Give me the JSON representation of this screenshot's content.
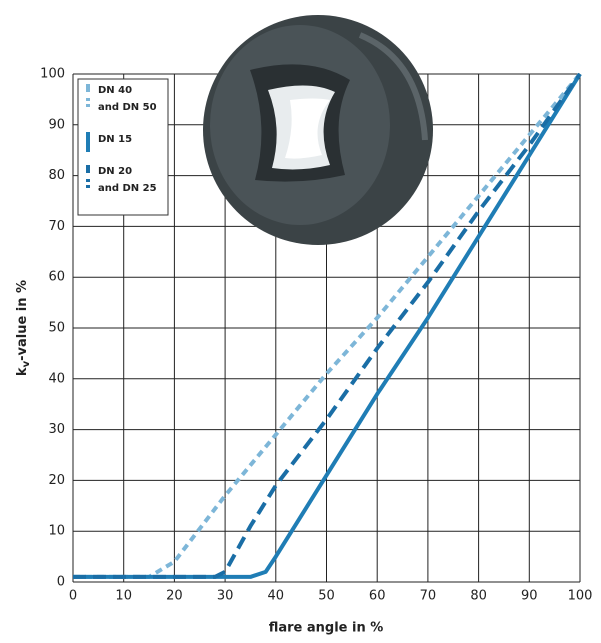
{
  "chart_data": {
    "type": "line",
    "xlabel": "flare angle in %",
    "ylabel_parts": [
      "k",
      "v",
      "-value in %"
    ],
    "xlim": [
      0,
      100
    ],
    "ylim": [
      0,
      100
    ],
    "xticks": [
      0,
      10,
      20,
      30,
      40,
      50,
      60,
      70,
      80,
      90,
      100
    ],
    "yticks": [
      0,
      10,
      20,
      30,
      40,
      50,
      60,
      70,
      80,
      90,
      100
    ],
    "grid": true,
    "legend": "upper left",
    "series": [
      {
        "name": [
          "DN 40",
          "and DN 50"
        ],
        "color": "#7db6d8",
        "dash": "short",
        "x": [
          0,
          15,
          20,
          30,
          40,
          50,
          60,
          70,
          80,
          90,
          100
        ],
        "values": [
          1,
          1,
          4,
          17,
          29,
          41,
          52,
          64,
          76,
          88,
          100
        ]
      },
      {
        "name": [
          "DN 15"
        ],
        "color": "#1f7db5",
        "dash": "solid",
        "x": [
          0,
          35,
          38,
          40,
          45,
          50,
          60,
          70,
          80,
          90,
          100
        ],
        "values": [
          1,
          1,
          2,
          5,
          13,
          21,
          37,
          52,
          68,
          84,
          100
        ]
      },
      {
        "name": [
          "DN 20",
          "and DN 25"
        ],
        "color": "#1a6ea6",
        "dash": "long",
        "x": [
          0,
          28,
          30,
          35,
          40,
          50,
          60,
          70,
          80,
          90,
          100
        ],
        "values": [
          1,
          1,
          2,
          11,
          19,
          32,
          46,
          59,
          73,
          86,
          100
        ]
      }
    ]
  }
}
